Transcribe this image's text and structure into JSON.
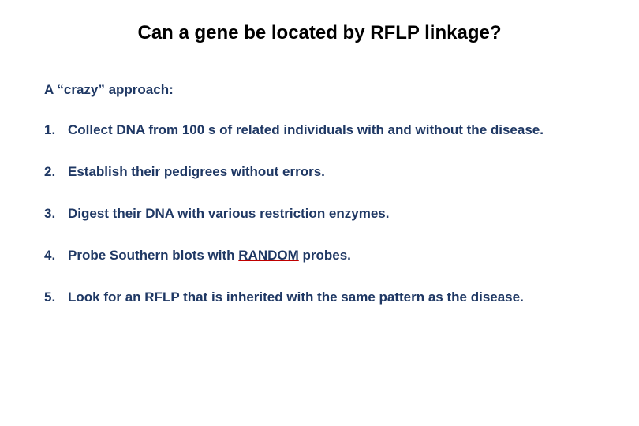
{
  "title": "Can a gene be located by RFLP linkage?",
  "subtitle": "A “crazy” approach:",
  "colors": {
    "title_color": "#000000",
    "body_color": "#1f3864",
    "underline_color": "#c00000",
    "background": "#ffffff"
  },
  "typography": {
    "title_fontsize": 24,
    "body_fontsize": 17,
    "font_family": "Arial",
    "font_weight": "bold"
  },
  "items": [
    {
      "number": "1.",
      "text": "Collect DNA from 100 s of related individuals with and without the disease."
    },
    {
      "number": "2.",
      "text": "Establish their pedigrees without errors."
    },
    {
      "number": "3.",
      "text": "Digest their DNA with various restriction enzymes."
    },
    {
      "number": "4.",
      "text_before": " Probe Southern blots with ",
      "random": "RANDOM",
      "text_after": " probes."
    },
    {
      "number": "5.",
      "text": "Look for an RFLP that is inherited with the same pattern as the disease."
    }
  ]
}
